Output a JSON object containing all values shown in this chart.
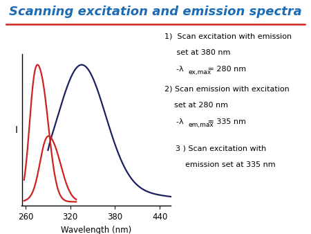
{
  "title": "Scanning excitation and emission spectra",
  "title_color": "#1B6BB5",
  "title_fontsize": 13,
  "xlabel": "Wavelength (nm)",
  "ylabel": "I",
  "xlim": [
    255,
    455
  ],
  "ylim": [
    -0.03,
    1.08
  ],
  "xticks": [
    260,
    320,
    380,
    440
  ],
  "line_color_red": "#CC2222",
  "line_color_blue": "#1a2060",
  "divider_color": "#CC2222",
  "background_color": "#ffffff",
  "ann_fontsize": 8.0,
  "ann_sub_fontsize": 6.5
}
